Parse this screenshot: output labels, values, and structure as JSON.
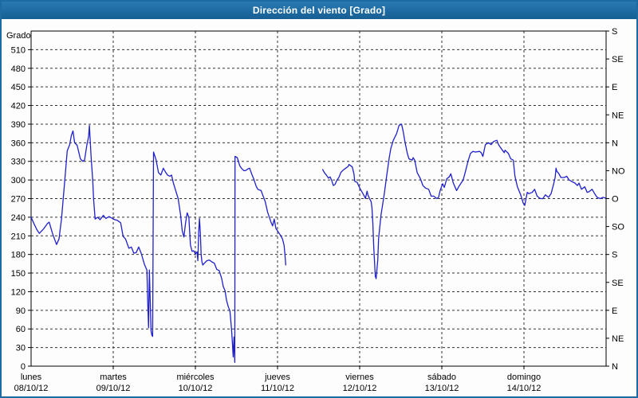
{
  "title": "Dirección del viento [Grado]",
  "chart_data": {
    "type": "line",
    "title": "Dirección del viento [Grado]",
    "ylabel_left": "Grado",
    "ylim": [
      0,
      540
    ],
    "xlim_days": [
      0,
      7
    ],
    "grid": "dashed",
    "legend": "none",
    "line_color": "#2020cc",
    "y_left_ticks": [
      0,
      30,
      60,
      90,
      120,
      150,
      180,
      210,
      240,
      270,
      300,
      330,
      360,
      390,
      420,
      450,
      480,
      510
    ],
    "y_right_compass": [
      {
        "deg": 540,
        "label": "S"
      },
      {
        "deg": 495,
        "label": "SE"
      },
      {
        "deg": 450,
        "label": "E"
      },
      {
        "deg": 405,
        "label": "NE"
      },
      {
        "deg": 360,
        "label": "N"
      },
      {
        "deg": 315,
        "label": "NO"
      },
      {
        "deg": 270,
        "label": "O"
      },
      {
        "deg": 225,
        "label": "SO"
      },
      {
        "deg": 180,
        "label": "S"
      },
      {
        "deg": 135,
        "label": "SE"
      },
      {
        "deg": 90,
        "label": "E"
      },
      {
        "deg": 45,
        "label": "NE"
      },
      {
        "deg": 0,
        "label": "N"
      }
    ],
    "x_days": [
      {
        "name": "lunes",
        "date": "08/10/12"
      },
      {
        "name": "martes",
        "date": "09/10/12"
      },
      {
        "name": "miércoles",
        "date": "10/10/12"
      },
      {
        "name": "jueves",
        "date": "11/10/12"
      },
      {
        "name": "viernes",
        "date": "12/10/12"
      },
      {
        "name": "sábado",
        "date": "13/10/12"
      },
      {
        "name": "domingo",
        "date": "14/10/12"
      }
    ],
    "series": [
      {
        "name": "wind-direction",
        "segments": [
          [
            [
              0.0,
              240
            ],
            [
              0.03,
              231
            ],
            [
              0.07,
              220
            ],
            [
              0.1,
              214
            ],
            [
              0.15,
              221
            ],
            [
              0.2,
              230
            ],
            [
              0.22,
              232
            ],
            [
              0.26,
              214
            ],
            [
              0.29,
              203
            ],
            [
              0.31,
              196
            ],
            [
              0.34,
              205
            ],
            [
              0.37,
              237
            ],
            [
              0.41,
              299
            ],
            [
              0.44,
              347
            ],
            [
              0.47,
              357
            ],
            [
              0.49,
              372
            ],
            [
              0.51,
              379
            ],
            [
              0.53,
              360
            ],
            [
              0.56,
              356
            ],
            [
              0.6,
              334
            ],
            [
              0.63,
              330
            ],
            [
              0.65,
              332
            ],
            [
              0.68,
              357
            ],
            [
              0.7,
              370
            ],
            [
              0.71,
              388
            ],
            [
              0.73,
              338
            ],
            [
              0.75,
              299
            ],
            [
              0.76,
              270
            ],
            [
              0.78,
              237
            ],
            [
              0.81,
              240
            ],
            [
              0.84,
              236
            ],
            [
              0.88,
              243
            ],
            [
              0.91,
              238
            ],
            [
              0.95,
              241
            ],
            [
              0.99,
              238
            ],
            [
              1.02,
              236
            ],
            [
              1.05,
              235
            ],
            [
              1.09,
              231
            ],
            [
              1.12,
              209
            ],
            [
              1.15,
              205
            ],
            [
              1.19,
              190
            ],
            [
              1.22,
              192
            ],
            [
              1.25,
              182
            ],
            [
              1.28,
              183
            ],
            [
              1.31,
              192
            ],
            [
              1.34,
              182
            ],
            [
              1.38,
              164
            ],
            [
              1.41,
              155
            ],
            [
              1.42,
              100
            ],
            [
              1.43,
              62
            ],
            [
              1.44,
              155
            ],
            [
              1.46,
              57
            ],
            [
              1.47,
              50
            ],
            [
              1.48,
              48
            ],
            [
              1.49,
              345
            ],
            [
              1.52,
              333
            ],
            [
              1.55,
              312
            ],
            [
              1.58,
              308
            ],
            [
              1.61,
              319
            ],
            [
              1.64,
              312
            ],
            [
              1.66,
              308
            ],
            [
              1.69,
              306
            ],
            [
              1.71,
              308
            ],
            [
              1.73,
              296
            ],
            [
              1.76,
              283
            ],
            [
              1.79,
              270
            ],
            [
              1.82,
              243
            ],
            [
              1.84,
              218
            ],
            [
              1.86,
              208
            ],
            [
              1.88,
              230
            ],
            [
              1.9,
              247
            ],
            [
              1.92,
              240
            ],
            [
              1.94,
              195
            ],
            [
              1.96,
              185
            ],
            [
              1.98,
              186
            ],
            [
              2.0,
              181
            ],
            [
              2.02,
              184
            ],
            [
              2.03,
              170
            ],
            [
              2.04,
              215
            ],
            [
              2.05,
              238
            ],
            [
              2.06,
              215
            ],
            [
              2.07,
              180
            ],
            [
              2.08,
              168
            ],
            [
              2.09,
              163
            ],
            [
              2.11,
              166
            ],
            [
              2.14,
              170
            ],
            [
              2.17,
              171
            ],
            [
              2.2,
              168
            ],
            [
              2.23,
              166
            ],
            [
              2.26,
              156
            ],
            [
              2.29,
              154
            ],
            [
              2.32,
              141
            ],
            [
              2.34,
              128
            ],
            [
              2.36,
              122
            ],
            [
              2.38,
              106
            ],
            [
              2.4,
              96
            ],
            [
              2.42,
              89
            ],
            [
              2.44,
              60
            ],
            [
              2.45,
              38
            ],
            [
              2.46,
              15
            ],
            [
              2.47,
              47
            ],
            [
              2.48,
              6
            ],
            [
              2.483,
              338
            ],
            [
              2.51,
              336
            ],
            [
              2.54,
              323
            ],
            [
              2.56,
              319
            ],
            [
              2.59,
              315
            ],
            [
              2.61,
              315
            ],
            [
              2.64,
              318
            ],
            [
              2.66,
              319
            ],
            [
              2.69,
              308
            ],
            [
              2.71,
              302
            ],
            [
              2.74,
              290
            ],
            [
              2.76,
              285
            ],
            [
              2.78,
              284
            ],
            [
              2.8,
              283
            ],
            [
              2.83,
              272
            ],
            [
              2.85,
              265
            ],
            [
              2.88,
              248
            ],
            [
              2.9,
              240
            ],
            [
              2.92,
              232
            ],
            [
              2.94,
              226
            ],
            [
              2.96,
              237
            ],
            [
              2.98,
              222
            ],
            [
              3.0,
              218
            ],
            [
              3.02,
              214
            ],
            [
              3.04,
              210
            ],
            [
              3.06,
              205
            ],
            [
              3.08,
              195
            ],
            [
              3.09,
              180
            ],
            [
              3.1,
              163
            ]
          ],
          [
            [
              3.55,
              317
            ],
            [
              3.57,
              312
            ],
            [
              3.6,
              307
            ],
            [
              3.62,
              303
            ],
            [
              3.64,
              305
            ],
            [
              3.66,
              299
            ],
            [
              3.68,
              291
            ],
            [
              3.7,
              293
            ],
            [
              3.72,
              299
            ],
            [
              3.75,
              305
            ],
            [
              3.77,
              312
            ],
            [
              3.8,
              316
            ],
            [
              3.83,
              319
            ],
            [
              3.86,
              322
            ],
            [
              3.87,
              325
            ],
            [
              3.89,
              323
            ],
            [
              3.91,
              321
            ],
            [
              3.93,
              310
            ],
            [
              3.94,
              298
            ],
            [
              3.97,
              296
            ],
            [
              3.99,
              290
            ],
            [
              4.01,
              285
            ],
            [
              4.04,
              278
            ],
            [
              4.06,
              273
            ],
            [
              4.07,
              270
            ],
            [
              4.09,
              282
            ],
            [
              4.1,
              276
            ],
            [
              4.12,
              270
            ],
            [
              4.14,
              265
            ],
            [
              4.15,
              255
            ],
            [
              4.16,
              231
            ],
            [
              4.17,
              196
            ],
            [
              4.18,
              171
            ],
            [
              4.19,
              145
            ],
            [
              4.2,
              141
            ],
            [
              4.22,
              171
            ],
            [
              4.23,
              205
            ],
            [
              4.26,
              244
            ],
            [
              4.3,
              278
            ],
            [
              4.33,
              308
            ],
            [
              4.36,
              336
            ],
            [
              4.38,
              351
            ],
            [
              4.41,
              364
            ],
            [
              4.45,
              375
            ],
            [
              4.48,
              388
            ],
            [
              4.51,
              390
            ],
            [
              4.53,
              378
            ],
            [
              4.55,
              362
            ],
            [
              4.58,
              343
            ],
            [
              4.6,
              334
            ],
            [
              4.62,
              333
            ],
            [
              4.64,
              332
            ],
            [
              4.65,
              336
            ],
            [
              4.67,
              332
            ],
            [
              4.7,
              312
            ],
            [
              4.74,
              302
            ],
            [
              4.77,
              291
            ],
            [
              4.8,
              287
            ],
            [
              4.84,
              285
            ],
            [
              4.87,
              274
            ],
            [
              4.9,
              274
            ],
            [
              4.94,
              270
            ],
            [
              4.96,
              272
            ],
            [
              4.98,
              283
            ],
            [
              5.01,
              294
            ],
            [
              5.03,
              288
            ],
            [
              5.06,
              302
            ],
            [
              5.09,
              305
            ],
            [
              5.11,
              310
            ],
            [
              5.14,
              295
            ],
            [
              5.16,
              289
            ],
            [
              5.18,
              283
            ],
            [
              5.21,
              290
            ],
            [
              5.23,
              294
            ],
            [
              5.26,
              300
            ],
            [
              5.29,
              315
            ],
            [
              5.32,
              331
            ],
            [
              5.35,
              343
            ],
            [
              5.38,
              346
            ],
            [
              5.41,
              345
            ],
            [
              5.46,
              346
            ],
            [
              5.48,
              344
            ],
            [
              5.5,
              338
            ],
            [
              5.53,
              357
            ],
            [
              5.57,
              360
            ],
            [
              5.6,
              357
            ],
            [
              5.63,
              362
            ],
            [
              5.67,
              364
            ],
            [
              5.69,
              357
            ],
            [
              5.72,
              351
            ],
            [
              5.76,
              344
            ],
            [
              5.77,
              348
            ],
            [
              5.81,
              343
            ],
            [
              5.84,
              334
            ],
            [
              5.87,
              332
            ],
            [
              5.89,
              306
            ],
            [
              5.92,
              289
            ],
            [
              5.96,
              276
            ],
            [
              5.99,
              263
            ],
            [
              6.01,
              259
            ],
            [
              6.04,
              280
            ],
            [
              6.06,
              278
            ],
            [
              6.1,
              280
            ],
            [
              6.13,
              285
            ],
            [
              6.16,
              274
            ],
            [
              6.2,
              270
            ],
            [
              6.23,
              270
            ],
            [
              6.26,
              276
            ],
            [
              6.3,
              272
            ],
            [
              6.33,
              278
            ],
            [
              6.36,
              293
            ],
            [
              6.38,
              304
            ],
            [
              6.39,
              319
            ],
            [
              6.4,
              314
            ],
            [
              6.42,
              311
            ],
            [
              6.45,
              304
            ],
            [
              6.49,
              304
            ],
            [
              6.52,
              306
            ],
            [
              6.55,
              300
            ],
            [
              6.59,
              297
            ],
            [
              6.62,
              295
            ],
            [
              6.65,
              291
            ],
            [
              6.67,
              295
            ],
            [
              6.7,
              285
            ],
            [
              6.74,
              289
            ],
            [
              6.77,
              280
            ],
            [
              6.79,
              281
            ],
            [
              6.83,
              285
            ],
            [
              6.86,
              278
            ],
            [
              6.89,
              272
            ],
            [
              6.93,
              270
            ],
            [
              6.96,
              272
            ],
            [
              6.99,
              271
            ]
          ]
        ]
      }
    ]
  }
}
